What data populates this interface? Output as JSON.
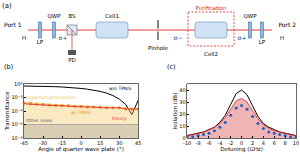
{
  "diagram": {
    "label": "(a)",
    "port_left": "Port 1",
    "port_right": "Port 2",
    "components": [
      "LP",
      "QWP",
      "BS",
      "PD",
      "Cell1",
      "Pinhole",
      "Cell2",
      "QWP",
      "LP"
    ],
    "box_label": "Purification",
    "polarizations": [
      "H",
      "σ+",
      "σ−",
      "σ+",
      "H"
    ]
  },
  "chart_data": [
    {
      "label": "(b)",
      "type": "line",
      "xlabel": "Angle of quarter wave plate (°)",
      "ylabel": "Transmittance",
      "log": "y",
      "xlim": [
        -45,
        45
      ],
      "xticks": [
        -45,
        -30,
        -15,
        0,
        15,
        30,
        45
      ],
      "ylim": [
        1e-08,
        1
      ],
      "yticks": [
        {
          "value": 1e-08,
          "label": "10⁻⁸"
        },
        {
          "value": 1e-06,
          "label": "10⁻⁶"
        },
        {
          "value": 0.0001,
          "label": "10⁻⁴"
        },
        {
          "value": 0.01,
          "label": "10⁻²"
        },
        {
          "value": 1,
          "label": "10⁰"
        }
      ],
      "x": [
        -45,
        -40,
        -35,
        -30,
        -25,
        -20,
        -15,
        -10,
        -5,
        0,
        5,
        10,
        15,
        20,
        25,
        30,
        35,
        40,
        45
      ],
      "series": [
        {
          "name": "w/o TPNIS",
          "color": "#000000",
          "type": "line",
          "values": [
            0.5,
            0.5,
            0.48,
            0.46,
            0.43,
            0.4,
            0.36,
            0.32,
            0.27,
            0.22,
            0.17,
            0.12,
            0.08,
            0.045,
            0.02,
            0.006,
            0.001,
            3e-05,
            0.004
          ]
        },
        {
          "name": "Imperfect polarization",
          "color": "#f2c14e",
          "type": "area",
          "values": [
            0.002,
            0.0018,
            0.0015,
            0.0012,
            0.001,
            0.0009,
            0.0008,
            0.0007,
            0.0006,
            0.0005,
            0.0005,
            0.0004,
            0.0004,
            0.0003,
            0.0003,
            0.0003,
            0.0003,
            0.0002,
            0.0002
          ]
        },
        {
          "name": "Other noise",
          "color": "#9e9e9e",
          "type": "area",
          "values": [
            1e-06,
            1e-06,
            1e-06,
            1e-06,
            1e-06,
            1e-06,
            1e-06,
            1e-06,
            1e-06,
            1e-06,
            1e-06,
            1e-06,
            1e-06,
            1e-06,
            1e-06,
            1e-06,
            1e-06,
            1e-06,
            1e-06
          ]
        },
        {
          "name": "w/ TPNIS",
          "color": "#f08a24",
          "type": "scatter",
          "marker": "circle",
          "values": [
            0.0015,
            0.0012,
            0.001,
            0.0009,
            0.0008,
            0.0007,
            0.0006,
            0.0006,
            0.0005,
            0.0005,
            0.0004,
            0.0004,
            0.0004,
            0.0003,
            0.0003,
            0.0003,
            0.0002,
            0.0002,
            0.0002
          ]
        },
        {
          "name": "theory",
          "color": "#e03a3a",
          "type": "line",
          "values": [
            0.0012,
            0.001,
            0.0009,
            0.0008,
            0.0007,
            0.0006,
            0.0006,
            0.0005,
            0.0005,
            0.0004,
            0.0004,
            0.0004,
            0.0003,
            0.0003,
            0.0003,
            0.0003,
            0.0002,
            0.0002,
            0.0002
          ]
        }
      ]
    },
    {
      "label": "(c)",
      "type": "line",
      "xlabel": "Detuning (GHz)",
      "ylabel": "Isolation (dB)",
      "xlim": [
        -10,
        10
      ],
      "xticks": [
        -10,
        -8,
        -6,
        -4,
        -2,
        0,
        2,
        4,
        6,
        8,
        10
      ],
      "ylim": [
        0,
        45
      ],
      "yticks": [
        0,
        10,
        20,
        30,
        40
      ],
      "x": [
        -10,
        -9,
        -8,
        -7,
        -6,
        -5,
        -4,
        -3,
        -2,
        -1,
        0,
        1,
        2,
        3,
        4,
        5,
        6,
        7,
        8,
        9,
        10
      ],
      "series": [
        {
          "color": "#000000",
          "type": "line",
          "values": [
            2,
            3,
            4,
            5,
            7,
            9,
            13,
            19,
            28,
            37,
            40,
            36,
            27,
            18,
            12,
            9,
            7,
            5,
            4,
            3,
            2
          ]
        },
        {
          "color": "#d62728",
          "type": "area",
          "values": [
            2,
            3,
            4,
            5,
            7,
            9,
            12,
            17,
            24,
            31,
            33,
            30,
            23,
            16,
            11,
            8,
            6,
            5,
            4,
            3,
            2
          ]
        },
        {
          "color": "#1f5fbf",
          "type": "scatter",
          "marker": "circle",
          "values": [
            1,
            1,
            2,
            3,
            4,
            6,
            9,
            13,
            19,
            25,
            27,
            24,
            18,
            12,
            8,
            5,
            4,
            3,
            2,
            1,
            1
          ]
        }
      ]
    }
  ]
}
